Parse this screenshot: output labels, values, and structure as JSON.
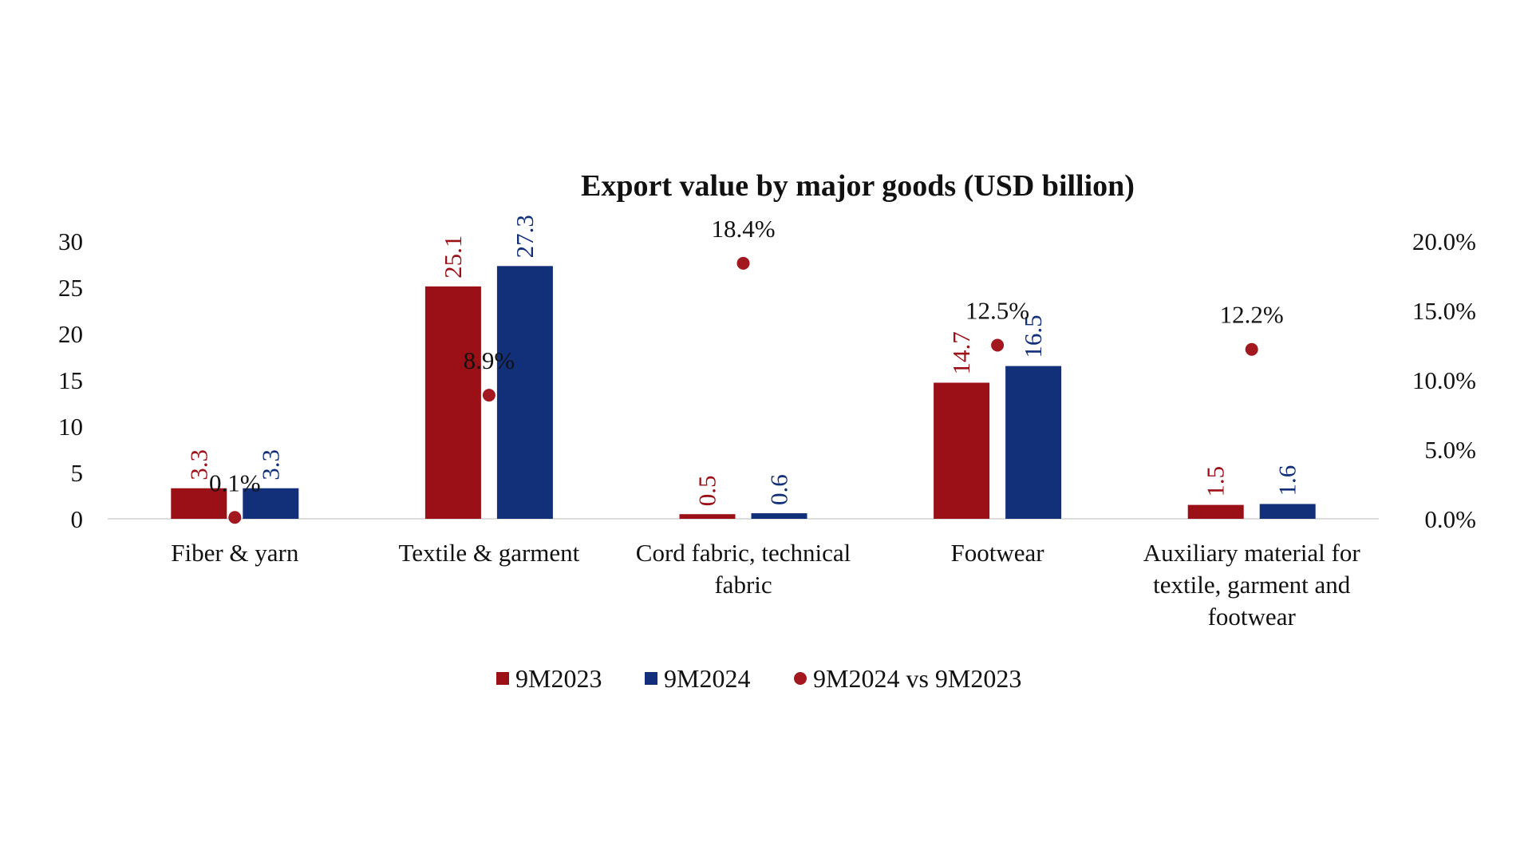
{
  "chart_data": {
    "type": "bar",
    "title": "Export value by major goods (USD billion)",
    "categories": [
      [
        "Fiber & yarn"
      ],
      [
        "Textile & garment"
      ],
      [
        "Cord fabric, technical",
        "fabric"
      ],
      [
        "Footwear"
      ],
      [
        "Auxiliary material for",
        "textile, garment and",
        "footwear"
      ]
    ],
    "series": [
      {
        "name": "9M2023",
        "type": "bar",
        "axis": "left",
        "color": "#9b1016",
        "values": [
          3.3,
          25.1,
          0.5,
          14.7,
          1.5
        ],
        "labels": [
          "3.3",
          "25.1",
          "0.5",
          "14.7",
          "1.5"
        ]
      },
      {
        "name": "9M2024",
        "type": "bar",
        "axis": "left",
        "color": "#12307a",
        "values": [
          3.3,
          27.3,
          0.6,
          16.5,
          1.6
        ],
        "labels": [
          "3.3",
          "27.3",
          "0.6",
          "16.5",
          "1.6"
        ]
      },
      {
        "name": "9M2024 vs 9M2023",
        "type": "scatter",
        "axis": "right",
        "color": "#a3171f",
        "values": [
          0.1,
          8.9,
          18.4,
          12.5,
          12.2
        ],
        "labels": [
          "0.1%",
          "8.9%",
          "18.4%",
          "12.5%",
          "12.2%"
        ]
      }
    ],
    "y_left": {
      "min": 0,
      "max": 30,
      "ticks": [
        "0",
        "5",
        "10",
        "15",
        "20",
        "25",
        "30"
      ]
    },
    "y_right": {
      "min": 0,
      "max": 20,
      "ticks": [
        "0.0%",
        "5.0%",
        "10.0%",
        "15.0%",
        "20.0%"
      ]
    },
    "grid": false,
    "legend_position": "bottom"
  }
}
